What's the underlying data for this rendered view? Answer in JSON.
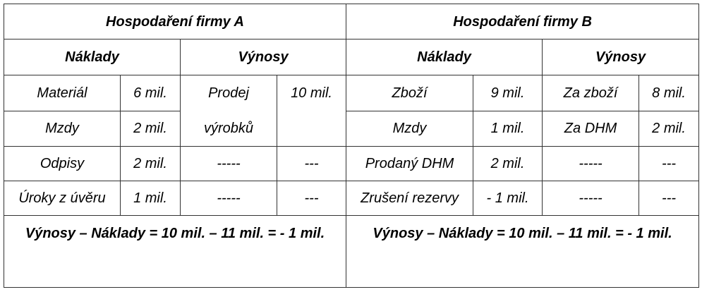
{
  "firm_a": {
    "title": "Hospodaření firmy A",
    "costs_header": "Náklady",
    "revenues_header": "Výnosy",
    "costs": [
      [
        "Materiál",
        "6 mil."
      ],
      [
        "Mzdy",
        "2 mil."
      ],
      [
        "Odpisy",
        "2 mil."
      ],
      [
        "Úroky z úvěru",
        "1 mil."
      ]
    ],
    "revenues": [
      [
        "Prodej výrobků",
        "10 mil."
      ],
      [
        "-----",
        "---"
      ],
      [
        "-----",
        "---"
      ]
    ],
    "result": "Výnosy – Náklady = 10 mil. – 11 mil. = - 1 mil."
  },
  "firm_b": {
    "title": "Hospodaření firmy B",
    "costs_header": "Náklady",
    "revenues_header": "Výnosy",
    "costs": [
      [
        "Zboží",
        "9 mil."
      ],
      [
        "Mzdy",
        "1 mil."
      ],
      [
        "Prodaný DHM",
        "2 mil."
      ],
      [
        "Zrušení rezervy",
        "- 1 mil."
      ]
    ],
    "revenues": [
      [
        "Za zboží",
        "8 mil."
      ],
      [
        "Za DHM",
        "2 mil."
      ],
      [
        "-----",
        "---"
      ],
      [
        "-----",
        "---"
      ]
    ],
    "result": "Výnosy – Náklady = 10 mil. – 11 mil. = - 1 mil."
  }
}
